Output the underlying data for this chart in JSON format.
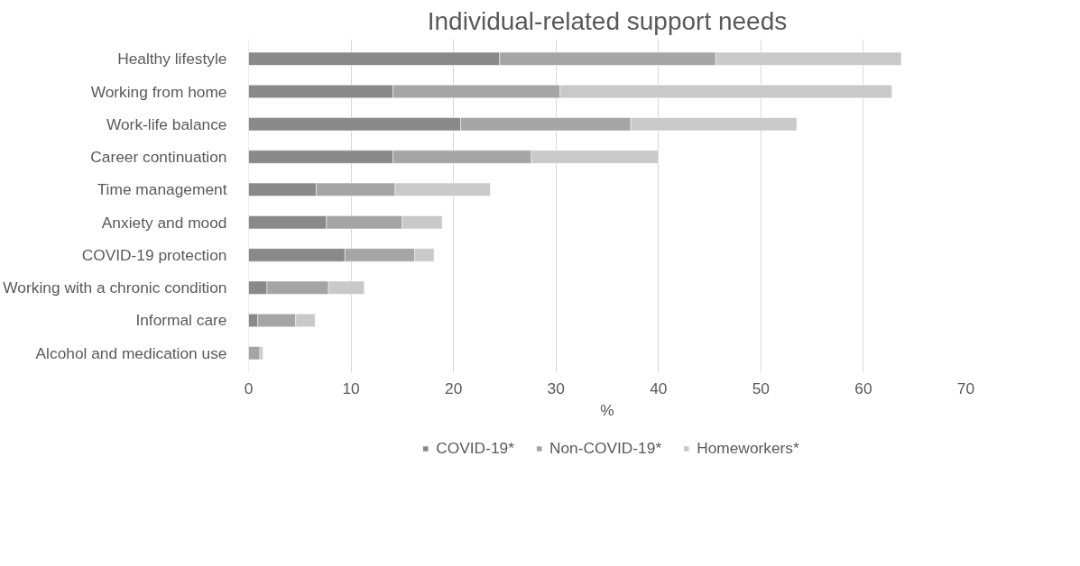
{
  "chart_data": {
    "type": "bar",
    "orientation": "horizontal",
    "stacked": true,
    "title": "Individual-related support needs",
    "xlabel": "%",
    "categories": [
      "Healthy lifestyle",
      "Working from home",
      "Work-life balance",
      "Career continuation",
      "Time management",
      "Anxiety and mood",
      "COVID-19 protection",
      "Working with a chronic condition",
      "Informal care",
      "Alcohol and medication use"
    ],
    "series": [
      {
        "name": "COVID-19*",
        "color": "#898989",
        "values": [
          24.5,
          14.1,
          20.7,
          14.1,
          6.6,
          7.6,
          9.4,
          1.8,
          0.9,
          0
        ]
      },
      {
        "name": "Non-COVID-19*",
        "color": "#a5a5a5",
        "values": [
          21.1,
          16.3,
          16.6,
          13.5,
          7.7,
          7.4,
          6.8,
          6.0,
          3.7,
          1.1
        ]
      },
      {
        "name": "Homeworkers*",
        "color": "#c9c9c9",
        "values": [
          18.1,
          32.4,
          16.2,
          12.4,
          9.3,
          3.9,
          1.9,
          3.5,
          1.9,
          0.3
        ]
      }
    ],
    "xlim": [
      0,
      70
    ],
    "xticks": [
      0,
      10,
      20,
      30,
      40,
      50,
      60,
      70
    ],
    "grid": "x",
    "legend": "bottom"
  }
}
